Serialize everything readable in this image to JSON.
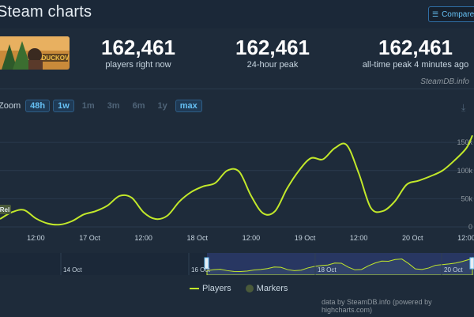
{
  "header": {
    "title": "Steam charts",
    "compare_label": "Compare",
    "compare_icon": "bars-icon"
  },
  "stats": [
    {
      "value": "162,461",
      "label": "players right now"
    },
    {
      "value": "162,461",
      "label": "24-hour peak"
    },
    {
      "value": "162,461",
      "label": "all-time peak 4 minutes ago"
    }
  ],
  "game_thumb": {
    "logo_text": "DUCKOV"
  },
  "credit_top": "SteamDB.info",
  "zoom": {
    "label": "Zoom",
    "options": [
      {
        "label": "48h",
        "state": "active"
      },
      {
        "label": "1w",
        "state": "active"
      },
      {
        "label": "1m",
        "state": "disabled"
      },
      {
        "label": "3m",
        "state": "disabled"
      },
      {
        "label": "6m",
        "state": "disabled"
      },
      {
        "label": "1y",
        "state": "disabled"
      },
      {
        "label": "max",
        "state": "active"
      }
    ]
  },
  "chart_data": {
    "type": "line",
    "series_name": "Players",
    "marker_label": "Rel",
    "x_tick_labels": [
      "12:00",
      "17 Oct",
      "12:00",
      "18 Oct",
      "12:00",
      "19 Oct",
      "12:00",
      "20 Oct",
      "12:00"
    ],
    "y_tick_labels": [
      "0",
      "50k",
      "100k",
      "150k"
    ],
    "ylim": [
      0,
      160000
    ],
    "x_hours": [
      0,
      4,
      8,
      12,
      16,
      20,
      24,
      28,
      32,
      36,
      40,
      44,
      48,
      52,
      56,
      60,
      64,
      68,
      72,
      76,
      80,
      84,
      88,
      92,
      96,
      100,
      104,
      108,
      112,
      116,
      120,
      124,
      128,
      132,
      136,
      140,
      144,
      148,
      152,
      156,
      158
    ],
    "values": [
      14000,
      26000,
      30000,
      15000,
      6000,
      4000,
      10000,
      22000,
      28000,
      38000,
      55000,
      52000,
      26000,
      14000,
      20000,
      45000,
      62000,
      72000,
      78000,
      100000,
      98000,
      55000,
      24000,
      28000,
      68000,
      100000,
      122000,
      120000,
      140000,
      145000,
      95000,
      34000,
      28000,
      45000,
      75000,
      82000,
      90000,
      100000,
      118000,
      140000,
      162461
    ],
    "x_start_label_hour": 12,
    "grid_y": true,
    "legend": [
      {
        "name": "Players",
        "color": "#c2e82a"
      },
      {
        "name": "Markers",
        "color": "#4a5a3a"
      }
    ],
    "color": "#c2e82a"
  },
  "navigator": {
    "labels": [
      "14 Oct",
      "16 Oct",
      "18 Oct",
      "20 Oct"
    ]
  },
  "credit_bottom": "data by SteamDB.info (powered by highcharts.com)"
}
